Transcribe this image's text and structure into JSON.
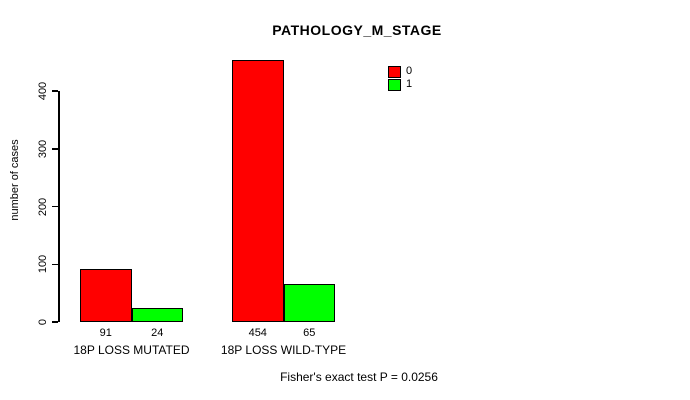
{
  "title": "PATHOLOGY_M_STAGE",
  "footer": {
    "text": "Fisher's exact test P = 0.0256"
  },
  "legend": {
    "items": [
      {
        "label": "0",
        "color": "#ff0000"
      },
      {
        "label": "1",
        "color": "#00ff00"
      }
    ]
  },
  "chart_data": {
    "type": "bar",
    "title": "PATHOLOGY_M_STAGE",
    "categories": [
      "18P LOSS MUTATED",
      "18P LOSS WILD-TYPE"
    ],
    "series": [
      {
        "name": "0",
        "color": "#ff0000",
        "values": [
          91,
          454
        ]
      },
      {
        "name": "1",
        "color": "#00ff00",
        "values": [
          24,
          65
        ]
      }
    ],
    "bar_value_labels": [
      [
        "91",
        "24"
      ],
      [
        "454",
        "65"
      ]
    ],
    "xlabel": "",
    "ylabel": "number of cases",
    "ylim": [
      0,
      400
    ],
    "yticks": [
      "0",
      "100",
      "200",
      "300",
      "400"
    ],
    "grid": false,
    "legend_position": "top-right",
    "annotation": "Fisher's exact test P = 0.0256"
  }
}
